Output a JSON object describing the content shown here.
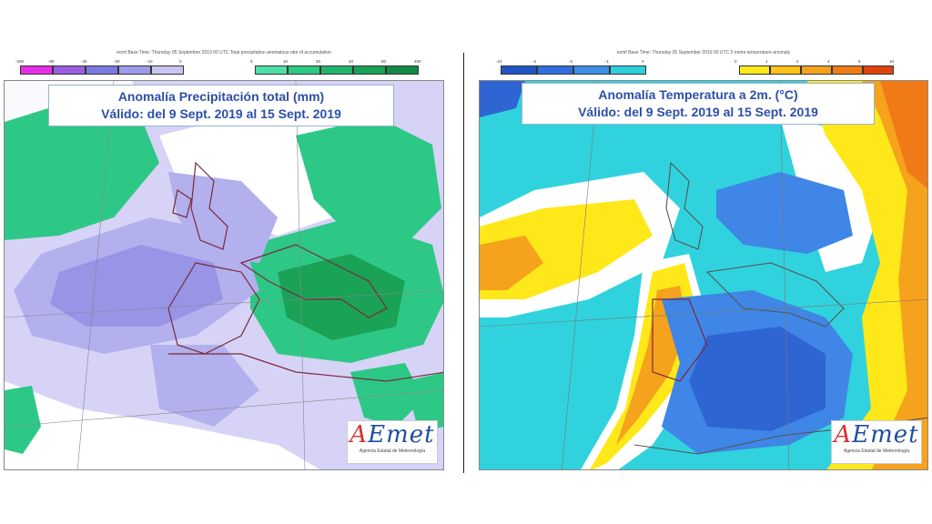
{
  "left_map": {
    "header": "ecmf Base Time: Thursday 05 September 2019 00 UTC Total precipitation anomalous rate of accumulation",
    "title_line1": "Anomalía Precipitación total (mm)",
    "title_line2": "Válido: del 9 Sept. 2019 al 15 Sept. 2019",
    "legend_dry": [
      {
        "label": "-200",
        "color": "#e62ee6"
      },
      {
        "label": "-80",
        "color": "#9a5fe0"
      },
      {
        "label": "-40",
        "color": "#7b79e0"
      },
      {
        "label": "-20",
        "color": "#9d9ce8"
      },
      {
        "label": "-10",
        "color": "#c9c5f2"
      }
    ],
    "legend_dry_end": "0",
    "legend_wet": [
      {
        "label": "0",
        "color": "#4ddfa9"
      },
      {
        "label": "10",
        "color": "#2ec886"
      },
      {
        "label": "20",
        "color": "#22b46c"
      },
      {
        "label": "40",
        "color": "#1aa257"
      },
      {
        "label": "80",
        "color": "#128a43"
      }
    ],
    "legend_wet_end": "200",
    "colors": {
      "ocean_dry": "#d6d3f7",
      "dry": "#b3b0ee",
      "dry_strong": "#9894e6",
      "wet": "#2ec886",
      "wet_strong": "#1aa257",
      "neutral": "#ffffff",
      "border": "#7a2a3a"
    },
    "logo": {
      "word_a": "A",
      "word_rest": "Emet",
      "subtitle": "Agencia Estatal de Meteorología"
    }
  },
  "right_map": {
    "header": "ecmf Base Time: Thursday 05 September 2019 00 UTC 2 metre temperature anomaly",
    "title_line1": "Anomalía Temperatura a 2m. (°C)",
    "title_line2": "Válido: del 9 Sept. 2019 al 15 Sept. 2019",
    "legend_cold": [
      {
        "label": "-10",
        "color": "#1f55c2"
      },
      {
        "label": "-4",
        "color": "#2f6fdd"
      },
      {
        "label": "-2",
        "color": "#3e8ee8"
      },
      {
        "label": "-1",
        "color": "#2fd0dc"
      }
    ],
    "legend_cold_end": "0",
    "legend_warm": [
      {
        "label": "0",
        "color": "#ffe81a"
      },
      {
        "label": "1",
        "color": "#ffc21a"
      },
      {
        "label": "2",
        "color": "#f5a21c"
      },
      {
        "label": "4",
        "color": "#f07a16"
      },
      {
        "label": "6",
        "color": "#e0420e"
      }
    ],
    "legend_warm_end": "10",
    "colors": {
      "cool": "#30d3dd",
      "cold": "#3f86e6",
      "cold_strong": "#2e65d3",
      "warm": "#ffe81a",
      "warmer": "#f5a21c",
      "hot": "#f07a16",
      "neutral": "#ffffff"
    },
    "logo": {
      "word_a": "A",
      "word_rest": "Emet",
      "subtitle": "Agencia Estatal de Meteorología"
    }
  }
}
